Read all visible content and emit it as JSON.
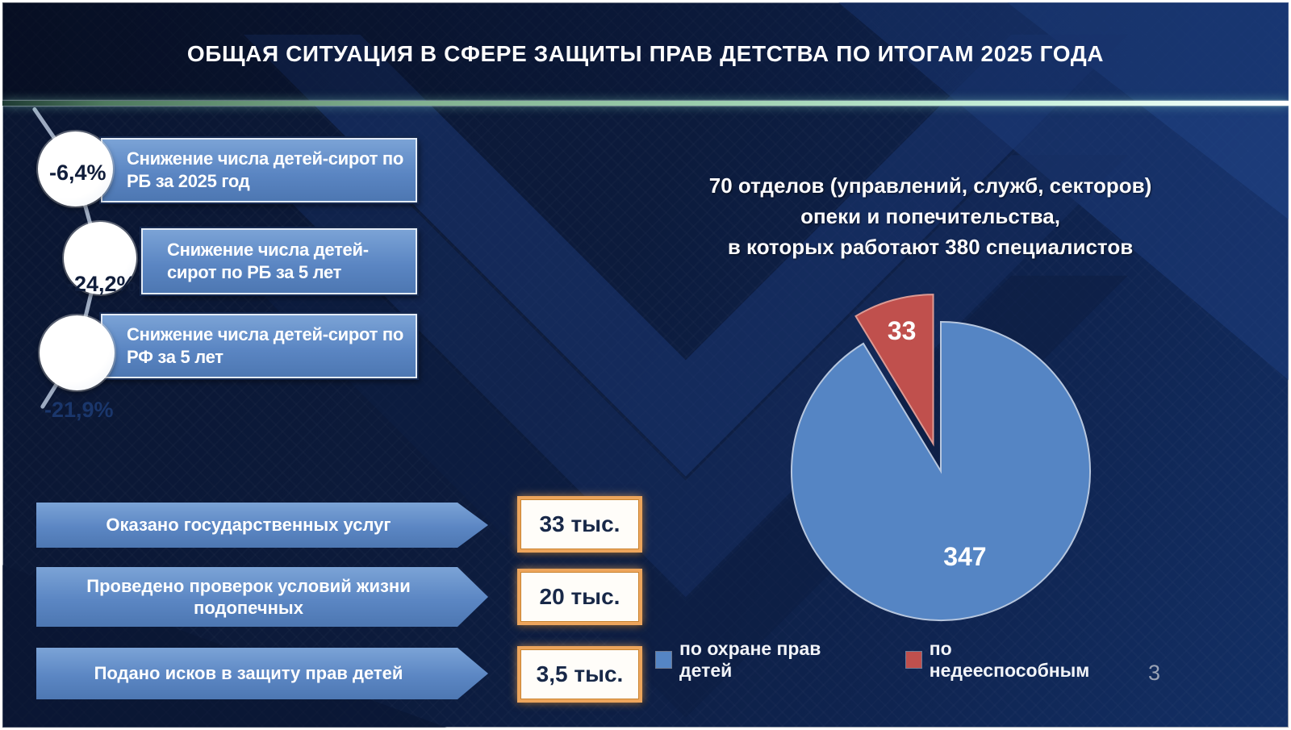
{
  "slide": {
    "title": "ОБЩАЯ СИТУАЦИЯ В СФЕРЕ ЗАЩИТЫ ПРАВ ДЕТСТВА ПО ИТОГАМ 2025 ГОДА",
    "page_number": "3"
  },
  "decline_stats": [
    {
      "value": "-6,4%",
      "label": "Снижение числа детей-сирот по РБ за 2025 год"
    },
    {
      "value": "-24,2%",
      "label": "Снижение числа детей-сирот по РБ за 5 лет"
    },
    {
      "value": "-21,9%",
      "label": "Снижение числа детей-сирот по РФ за 5 лет"
    }
  ],
  "service_stats": [
    {
      "label": "Оказано государственных услуг",
      "value": "33 тыс."
    },
    {
      "label": "Проведено проверок условий жизни подопечных",
      "value": "20 тыс."
    },
    {
      "label": "Подано исков в защиту прав детей",
      "value": "3,5 тыс."
    }
  ],
  "departments_text": {
    "line1": "70 отделов (управлений, служб, секторов)",
    "line2": "опеки и попечительства,",
    "line3": "в которых работают 380 специалистов"
  },
  "chart_data": {
    "type": "pie",
    "title": "70 отделов (управлений, служб, секторов) опеки и попечительства, в которых работают 380 специалистов",
    "total": 380,
    "slices": [
      {
        "label": "по охране прав детей",
        "value": 347,
        "color": "#5585c4",
        "exploded": false
      },
      {
        "label": "по недееспособным",
        "value": 33,
        "color": "#c0504d",
        "exploded": true
      }
    ],
    "start_angle_deg": 0,
    "direction": "clockwise",
    "legend_position": "bottom",
    "data_labels": [
      347,
      33
    ]
  },
  "colors": {
    "box_blue": "#5b86c3",
    "accent_orange": "#eda55c",
    "slice_blue": "#5585c4",
    "slice_red": "#c0504d",
    "divider_green": "#9ccfae",
    "bg_navy": "#0c1a38",
    "page_gray": "#9aa3b5"
  }
}
